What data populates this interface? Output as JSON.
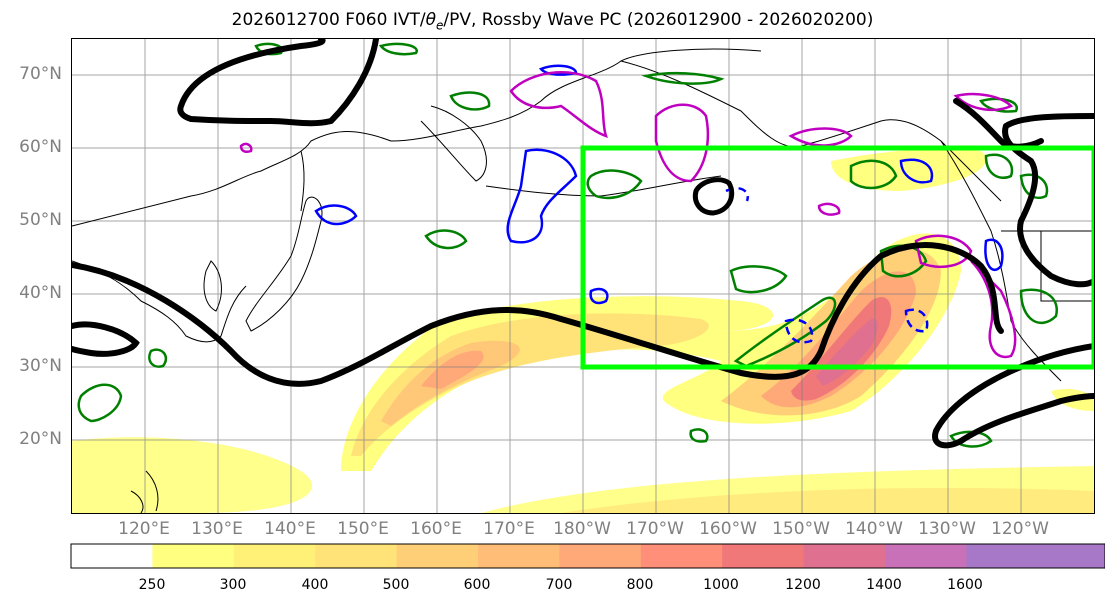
{
  "title": {
    "text_before": "2026012700 F060 IVT/",
    "theta": "θ",
    "subscript": "e",
    "text_after": "/PV, Rossby Wave PC (2026012900 - 2026020200)"
  },
  "lat_labels": [
    "70°N",
    "60°N",
    "50°N",
    "40°N",
    "30°N",
    "20°N"
  ],
  "lon_labels": [
    "120°E",
    "130°E",
    "140°E",
    "150°E",
    "160°E",
    "170°E",
    "180°W",
    "170°W",
    "160°W",
    "150°W",
    "140°W",
    "130°W",
    "120°W"
  ],
  "colorbar": {
    "ticks": [
      "250",
      "300",
      "400",
      "500",
      "600",
      "700",
      "800",
      "1000",
      "1200",
      "1400",
      "1600"
    ],
    "colors": [
      "#ffff80",
      "#fff178",
      "#ffe378",
      "#ffcf78",
      "#ffbd78",
      "#ffa878",
      "#ff8f78",
      "#f07878",
      "#e07090",
      "#c870b8",
      "#a878c8"
    ]
  },
  "map": {
    "extent_lon": [
      110,
      250
    ],
    "extent_lat": [
      10,
      75
    ],
    "box_region": {
      "lon": [
        180,
        250
      ],
      "lat": [
        30,
        60
      ]
    },
    "colors": {
      "pv_contour": "#000000",
      "theta_e_positive": "#008000",
      "theta_e_negative": "#0000ff",
      "theta_e_magenta": "#c000c0",
      "box": "#00ff00",
      "grid": "#808080",
      "coast": "#000000"
    }
  }
}
